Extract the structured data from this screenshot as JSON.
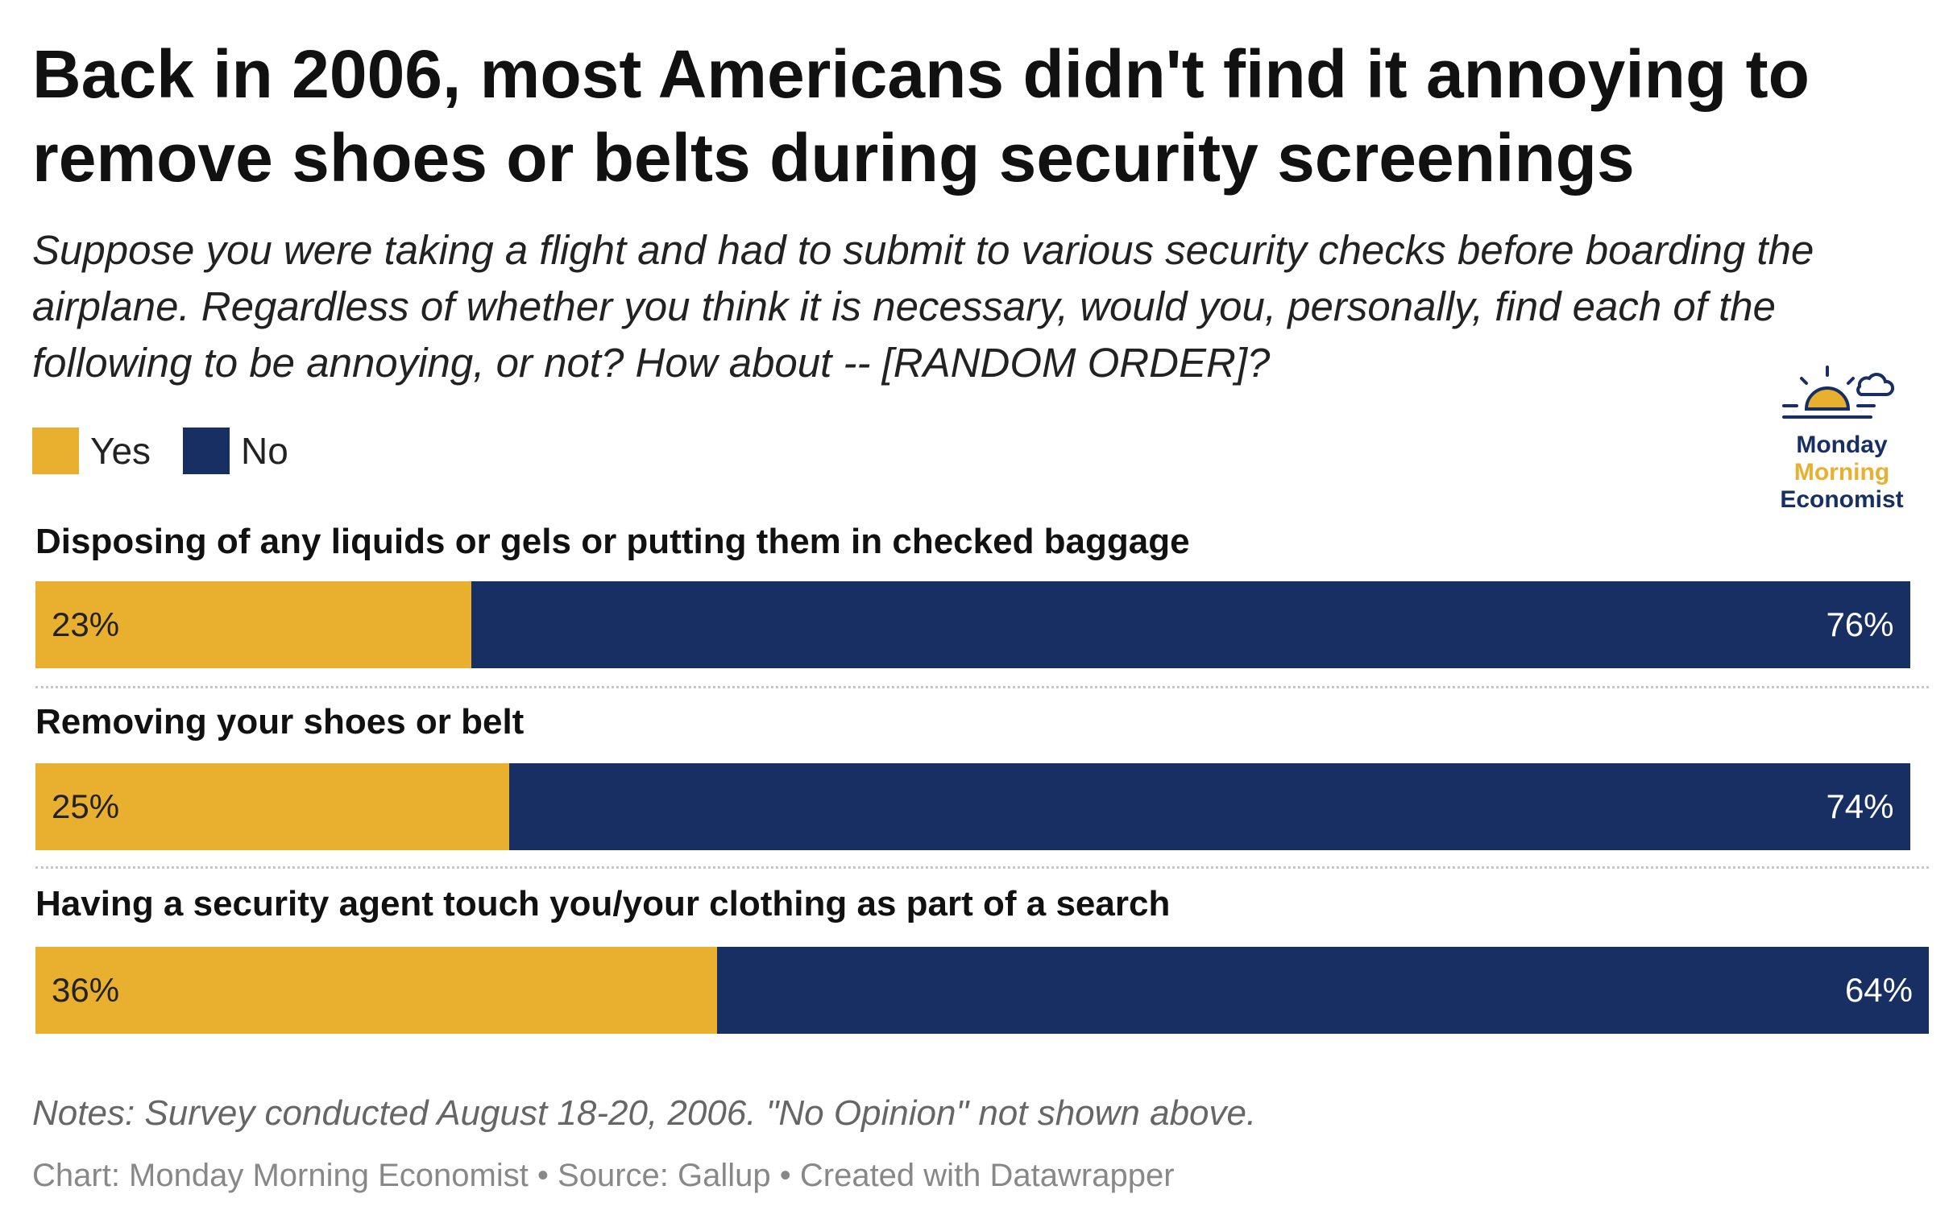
{
  "title": "Back in 2006, most Americans didn't find it annoying to remove shoes or belts during security screenings",
  "subtitle": "Suppose you were taking a flight and had to submit to various security checks before boarding the airplane. Regardless of whether you think it is necessary, would you, personally, find each of the following to be annoying, or not? How about -- [RANDOM ORDER]?",
  "legend": [
    {
      "label": "Yes",
      "color": "#E9AF2F"
    },
    {
      "label": "No",
      "color": "#172F63"
    }
  ],
  "logo": {
    "line1": "Monday",
    "line2": "Morning",
    "line3": "Economist"
  },
  "notes": "Notes: Survey conducted August 18-20, 2006. \"No Opinion\" not shown above.",
  "credit": "Chart: Monday Morning Economist • Source: Gallup • Created with Datawrapper",
  "chart_data": {
    "type": "bar",
    "orientation": "horizontal-stacked",
    "categories": [
      "Disposing of any liquids or gels or putting them in checked baggage",
      "Removing your shoes or belt",
      "Having a security agent touch you/your clothing as part of a search"
    ],
    "series": [
      {
        "name": "Yes",
        "color": "#E9AF2F",
        "values": [
          23,
          25,
          36
        ],
        "labels": [
          "23%",
          "25%",
          "36%"
        ]
      },
      {
        "name": "No",
        "color": "#172F63",
        "values": [
          76,
          74,
          64
        ],
        "labels": [
          "76%",
          "74%",
          "64%"
        ]
      }
    ],
    "unit": "%",
    "xlim": [
      0,
      100
    ]
  }
}
